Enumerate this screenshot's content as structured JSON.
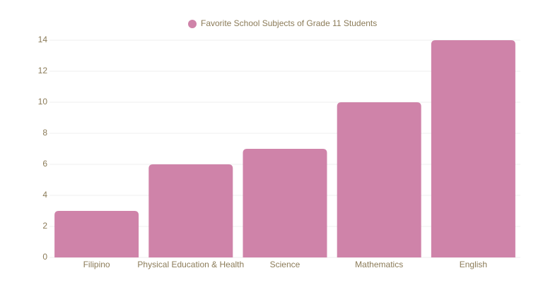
{
  "chart_data": {
    "type": "bar",
    "categories": [
      "Filipino",
      "Physical Education & Health",
      "Science",
      "Mathematics",
      "English"
    ],
    "series": [
      {
        "name": "Favorite School Subjects of Grade 11 Students",
        "color": "#cf83a9",
        "values": [
          3,
          6,
          7,
          10,
          14
        ]
      }
    ],
    "ylim": [
      0,
      14
    ],
    "yticks": [
      0,
      2,
      4,
      6,
      8,
      10,
      12,
      14
    ],
    "grid": true,
    "legend": "top"
  }
}
